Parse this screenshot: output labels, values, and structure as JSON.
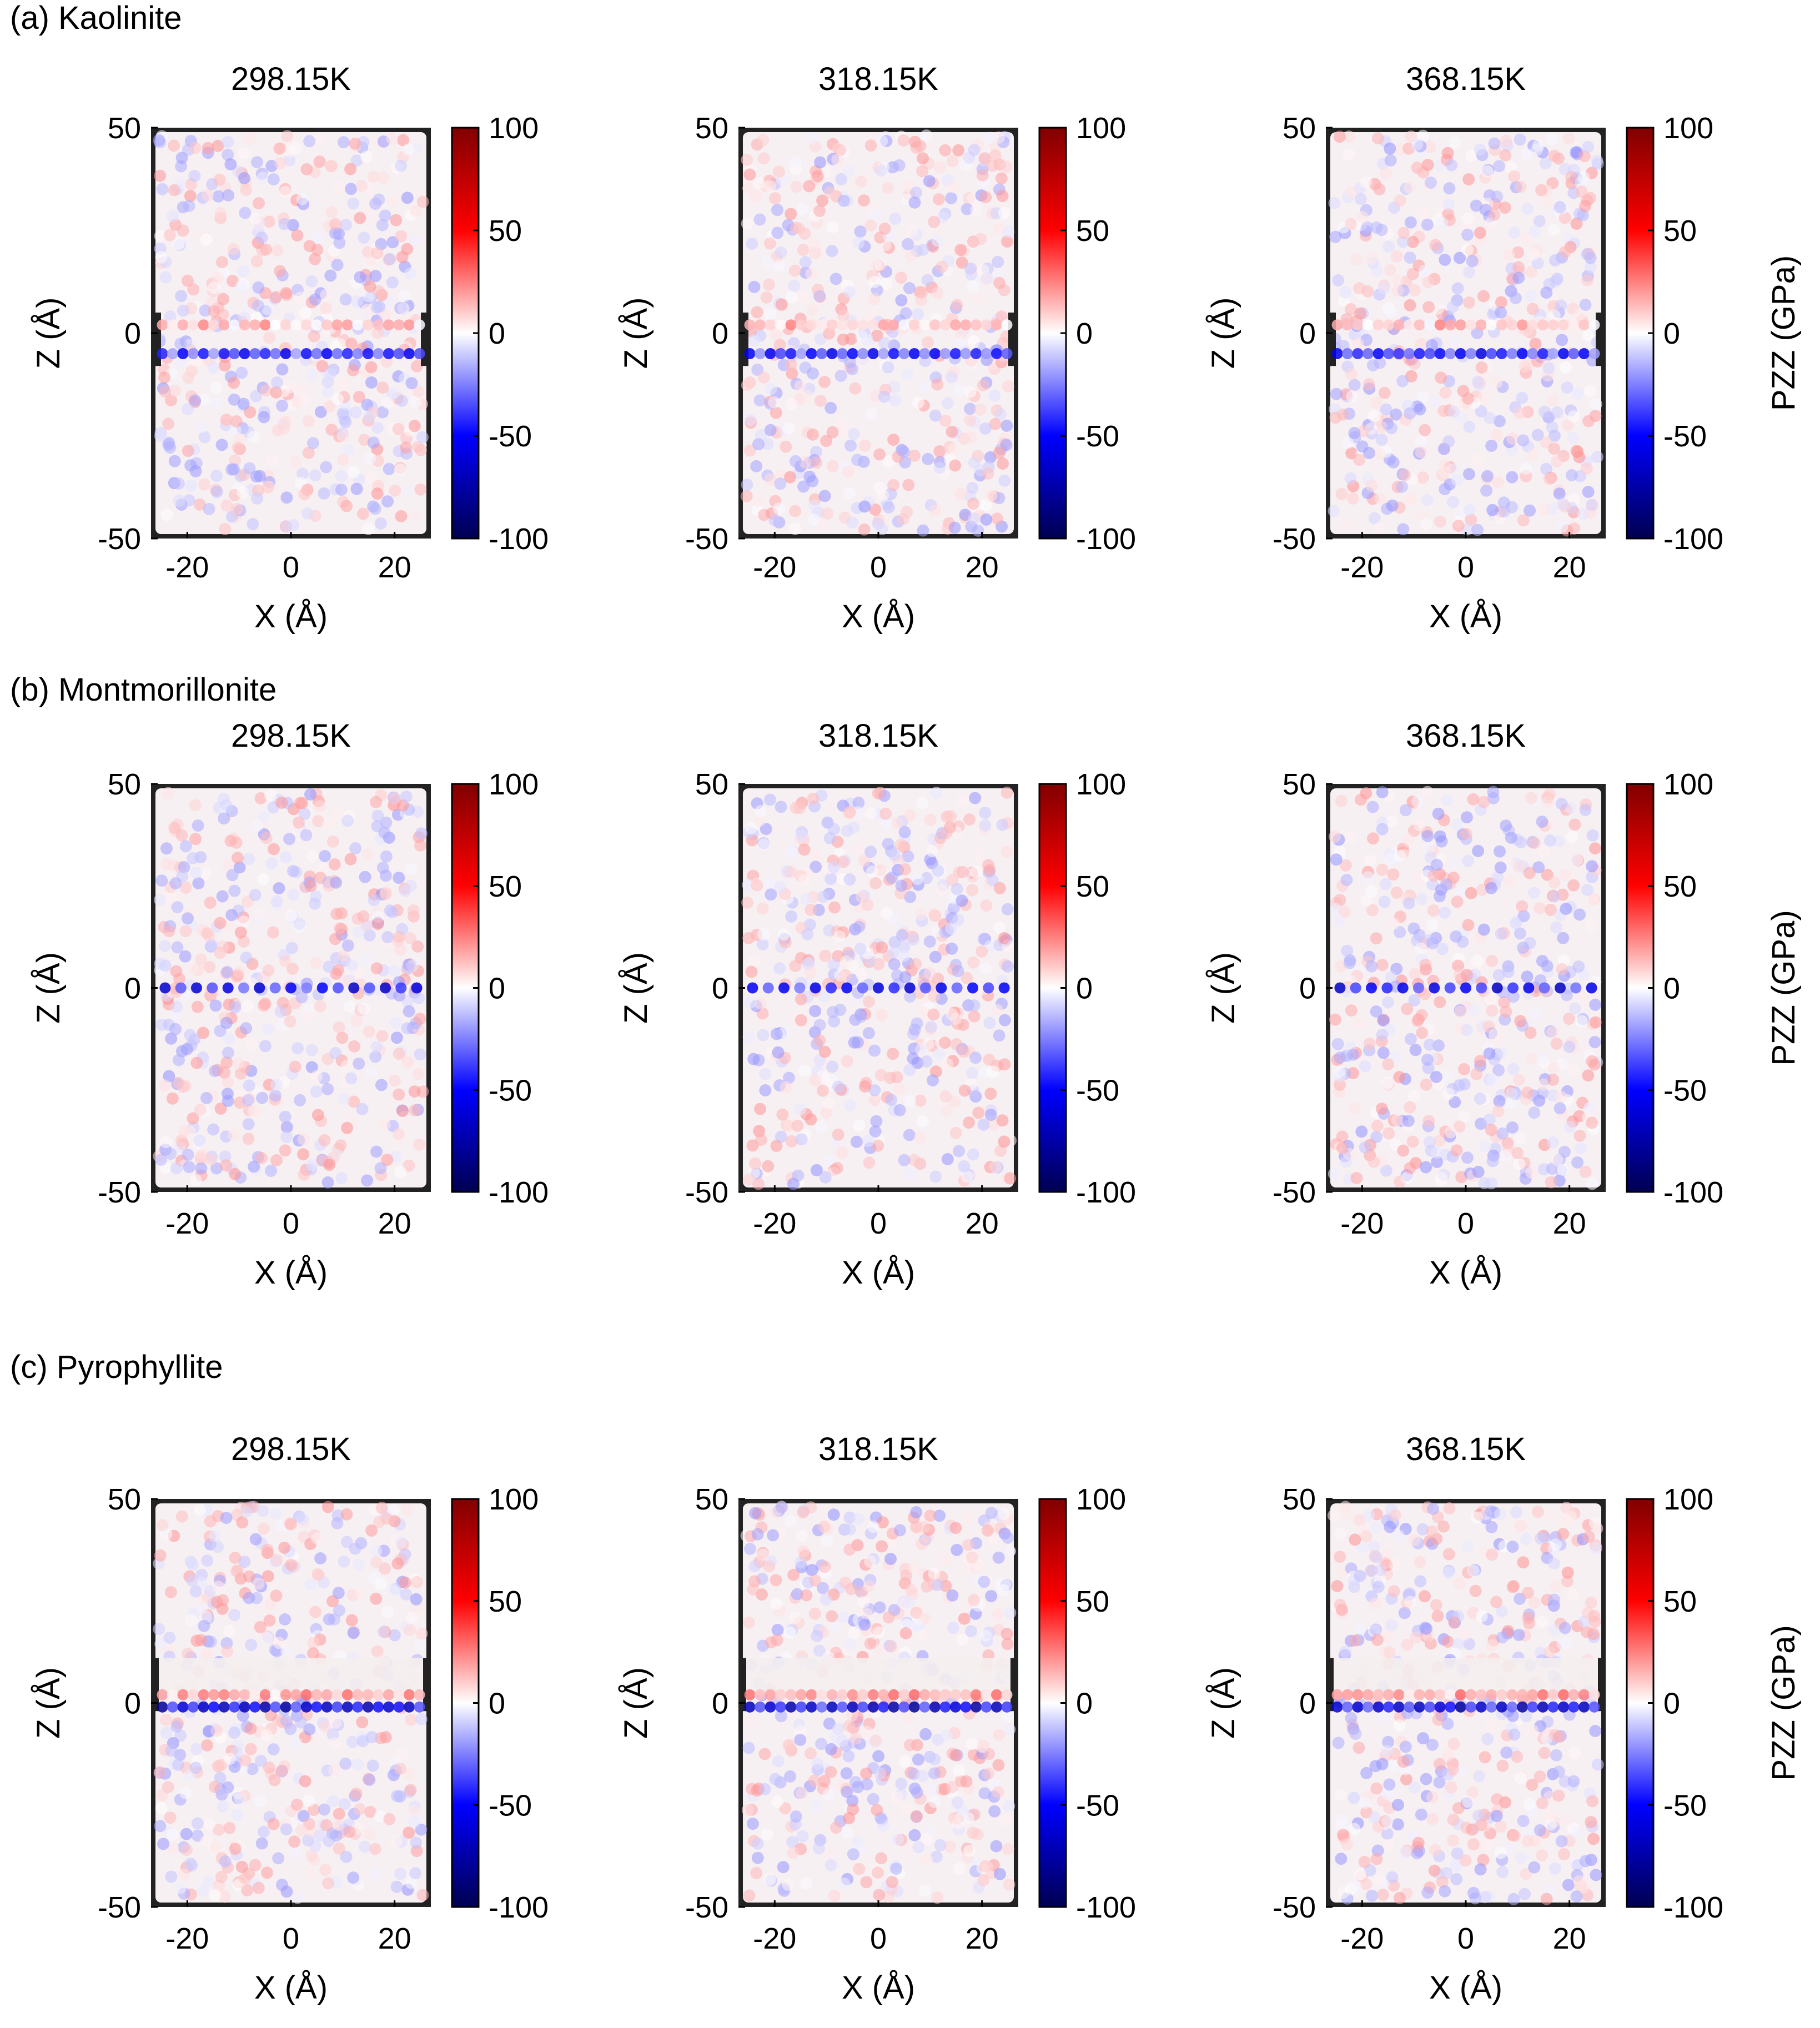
{
  "figure": {
    "shared": {
      "xlabel": "X (Å)",
      "ylabel": "Z (Å)",
      "colorbar_label": "PZZ (GPa)",
      "xticks": [
        -20,
        0,
        20
      ],
      "yticks": [
        50,
        0,
        -50
      ],
      "colorbar_ticks": [
        100,
        50,
        0,
        -50,
        -100
      ],
      "xlim": [
        -27,
        27
      ],
      "ylim": [
        -50,
        50
      ],
      "clim": [
        -100,
        100
      ],
      "colormap": [
        "#000050",
        "#0000ff",
        "#ffffff",
        "#ff0000",
        "#800000"
      ],
      "frame_color": "#222222"
    },
    "rows": [
      {
        "label": "(a) Kaolinite",
        "layer_pattern": "double",
        "panels": [
          {
            "title": "298.15K"
          },
          {
            "title": "318.15K"
          },
          {
            "title": "368.15K"
          }
        ]
      },
      {
        "label": "(b) Montmorillonite",
        "layer_pattern": "single",
        "panels": [
          {
            "title": "298.15K"
          },
          {
            "title": "318.15K"
          },
          {
            "title": "368.15K"
          }
        ]
      },
      {
        "label": "(c) Pyrophyllite",
        "layer_pattern": "interface",
        "panels": [
          {
            "title": "298.15K"
          },
          {
            "title": "318.15K"
          },
          {
            "title": "368.15K"
          }
        ]
      }
    ]
  },
  "chart_data": [
    {
      "type": "heatmap",
      "group": "(a) Kaolinite",
      "title": "298.15K",
      "xlabel": "X (Å)",
      "ylabel": "Z (Å)",
      "xlim": [
        -27,
        27
      ],
      "ylim": [
        -50,
        50
      ],
      "clim": [
        -100,
        100
      ],
      "colorbar_label": "PZZ (GPa)",
      "bands": [
        {
          "z": 2,
          "mean_pzz": 15
        },
        {
          "z": -5,
          "mean_pzz": -50
        }
      ],
      "background_pzz_range": [
        -10,
        10
      ]
    },
    {
      "type": "heatmap",
      "group": "(a) Kaolinite",
      "title": "318.15K",
      "xlabel": "X (Å)",
      "ylabel": "Z (Å)",
      "xlim": [
        -27,
        27
      ],
      "ylim": [
        -50,
        50
      ],
      "clim": [
        -100,
        100
      ],
      "colorbar_label": "PZZ (GPa)",
      "bands": [
        {
          "z": 2,
          "mean_pzz": 15
        },
        {
          "z": -5,
          "mean_pzz": -50
        }
      ],
      "background_pzz_range": [
        -10,
        10
      ]
    },
    {
      "type": "heatmap",
      "group": "(a) Kaolinite",
      "title": "368.15K",
      "xlabel": "X (Å)",
      "ylabel": "Z (Å)",
      "xlim": [
        -27,
        27
      ],
      "ylim": [
        -50,
        50
      ],
      "clim": [
        -100,
        100
      ],
      "colorbar_label": "PZZ (GPa)",
      "bands": [
        {
          "z": 2,
          "mean_pzz": 15
        },
        {
          "z": -5,
          "mean_pzz": -50
        }
      ],
      "background_pzz_range": [
        -10,
        10
      ]
    },
    {
      "type": "heatmap",
      "group": "(b) Montmorillonite",
      "title": "298.15K",
      "xlabel": "X (Å)",
      "ylabel": "Z (Å)",
      "xlim": [
        -27,
        27
      ],
      "ylim": [
        -50,
        50
      ],
      "clim": [
        -100,
        100
      ],
      "colorbar_label": "PZZ (GPa)",
      "bands": [
        {
          "z": 0,
          "mean_pzz": -60
        }
      ],
      "background_pzz_range": [
        -10,
        10
      ]
    },
    {
      "type": "heatmap",
      "group": "(b) Montmorillonite",
      "title": "318.15K",
      "xlabel": "X (Å)",
      "ylabel": "Z (Å)",
      "xlim": [
        -27,
        27
      ],
      "ylim": [
        -50,
        50
      ],
      "clim": [
        -100,
        100
      ],
      "colorbar_label": "PZZ (GPa)",
      "bands": [
        {
          "z": 0,
          "mean_pzz": -60
        }
      ],
      "background_pzz_range": [
        -10,
        10
      ]
    },
    {
      "type": "heatmap",
      "group": "(b) Montmorillonite",
      "title": "368.15K",
      "xlabel": "X (Å)",
      "ylabel": "Z (Å)",
      "xlim": [
        -27,
        27
      ],
      "ylim": [
        -50,
        50
      ],
      "clim": [
        -100,
        100
      ],
      "colorbar_label": "PZZ (GPa)",
      "bands": [
        {
          "z": 0,
          "mean_pzz": -60
        }
      ],
      "background_pzz_range": [
        -10,
        10
      ]
    },
    {
      "type": "heatmap",
      "group": "(c) Pyrophyllite",
      "title": "298.15K",
      "xlabel": "X (Å)",
      "ylabel": "Z (Å)",
      "xlim": [
        -27,
        27
      ],
      "ylim": [
        -50,
        50
      ],
      "clim": [
        -100,
        100
      ],
      "colorbar_label": "PZZ (GPa)",
      "bands": [
        {
          "z": 2,
          "mean_pzz": 20
        },
        {
          "z": -1,
          "mean_pzz": -70
        }
      ],
      "background_pzz_range": [
        -10,
        10
      ]
    },
    {
      "type": "heatmap",
      "group": "(c) Pyrophyllite",
      "title": "318.15K",
      "xlabel": "X (Å)",
      "ylabel": "Z (Å)",
      "xlim": [
        -27,
        27
      ],
      "ylim": [
        -50,
        50
      ],
      "clim": [
        -100,
        100
      ],
      "colorbar_label": "PZZ (GPa)",
      "bands": [
        {
          "z": 2,
          "mean_pzz": 20
        },
        {
          "z": -1,
          "mean_pzz": -70
        }
      ],
      "background_pzz_range": [
        -10,
        10
      ]
    },
    {
      "type": "heatmap",
      "group": "(c) Pyrophyllite",
      "title": "368.15K",
      "xlabel": "X (Å)",
      "ylabel": "Z (Å)",
      "xlim": [
        -27,
        27
      ],
      "ylim": [
        -50,
        50
      ],
      "clim": [
        -100,
        100
      ],
      "colorbar_label": "PZZ (GPa)",
      "bands": [
        {
          "z": 2,
          "mean_pzz": 20
        },
        {
          "z": -1,
          "mean_pzz": -70
        }
      ],
      "background_pzz_range": [
        -10,
        10
      ]
    }
  ]
}
